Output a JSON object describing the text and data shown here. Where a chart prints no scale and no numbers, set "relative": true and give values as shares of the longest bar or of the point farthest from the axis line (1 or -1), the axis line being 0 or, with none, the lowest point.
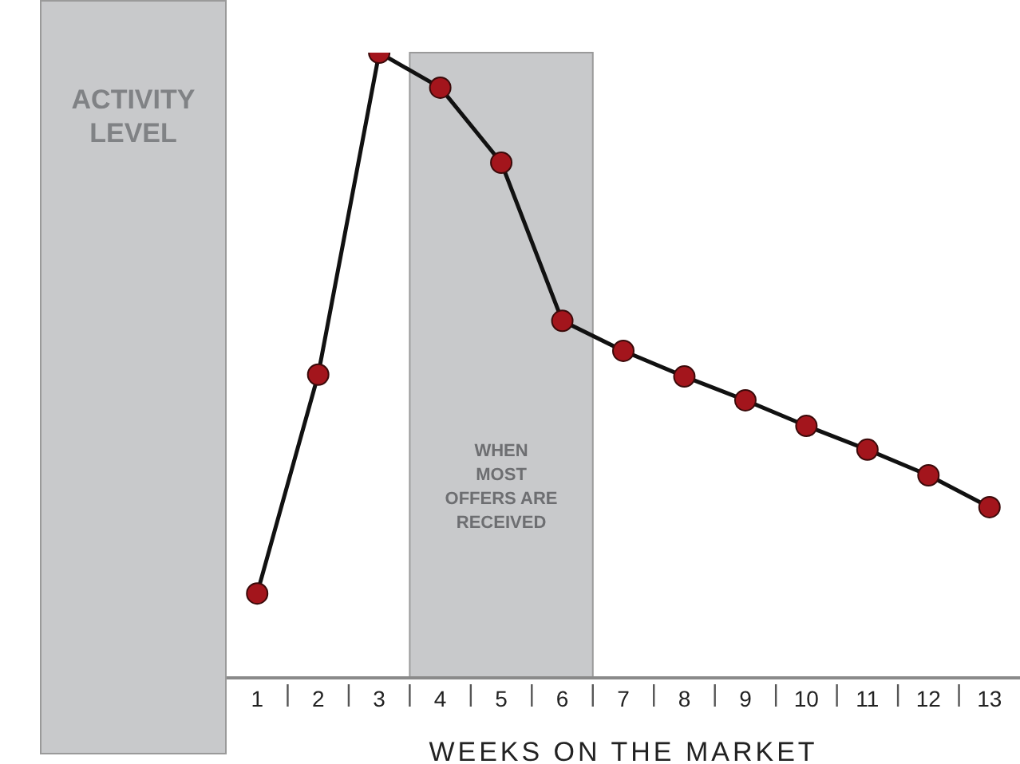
{
  "chart_data": {
    "type": "line",
    "ylabel": "ACTIVITY LEVEL",
    "xlabel": "WEEKS ON THE MARKET",
    "relative": true,
    "x": [
      1,
      2,
      3,
      4,
      5,
      6,
      7,
      8,
      9,
      10,
      11,
      12,
      13
    ],
    "xlim": [
      0.5,
      13.5
    ],
    "xticks": [
      1,
      2,
      3,
      4,
      5,
      6,
      7,
      8,
      9,
      10,
      11,
      12,
      13
    ],
    "series": [
      {
        "color": "#a3151c",
        "values": [
          0.135,
          0.485,
          1,
          0.944,
          0.824,
          0.571,
          0.523,
          0.482,
          0.444,
          0.403,
          0.365,
          0.324,
          0.273
        ]
      }
    ],
    "bands": [
      {
        "axis": "x",
        "from": 3.5,
        "to": 6.5,
        "label": "WHEN MOST OFFERS ARE RECEIVED",
        "color": "#c8c9cb"
      }
    ],
    "marker": "circle",
    "line_style": "solid",
    "grid": false,
    "legend": false
  }
}
